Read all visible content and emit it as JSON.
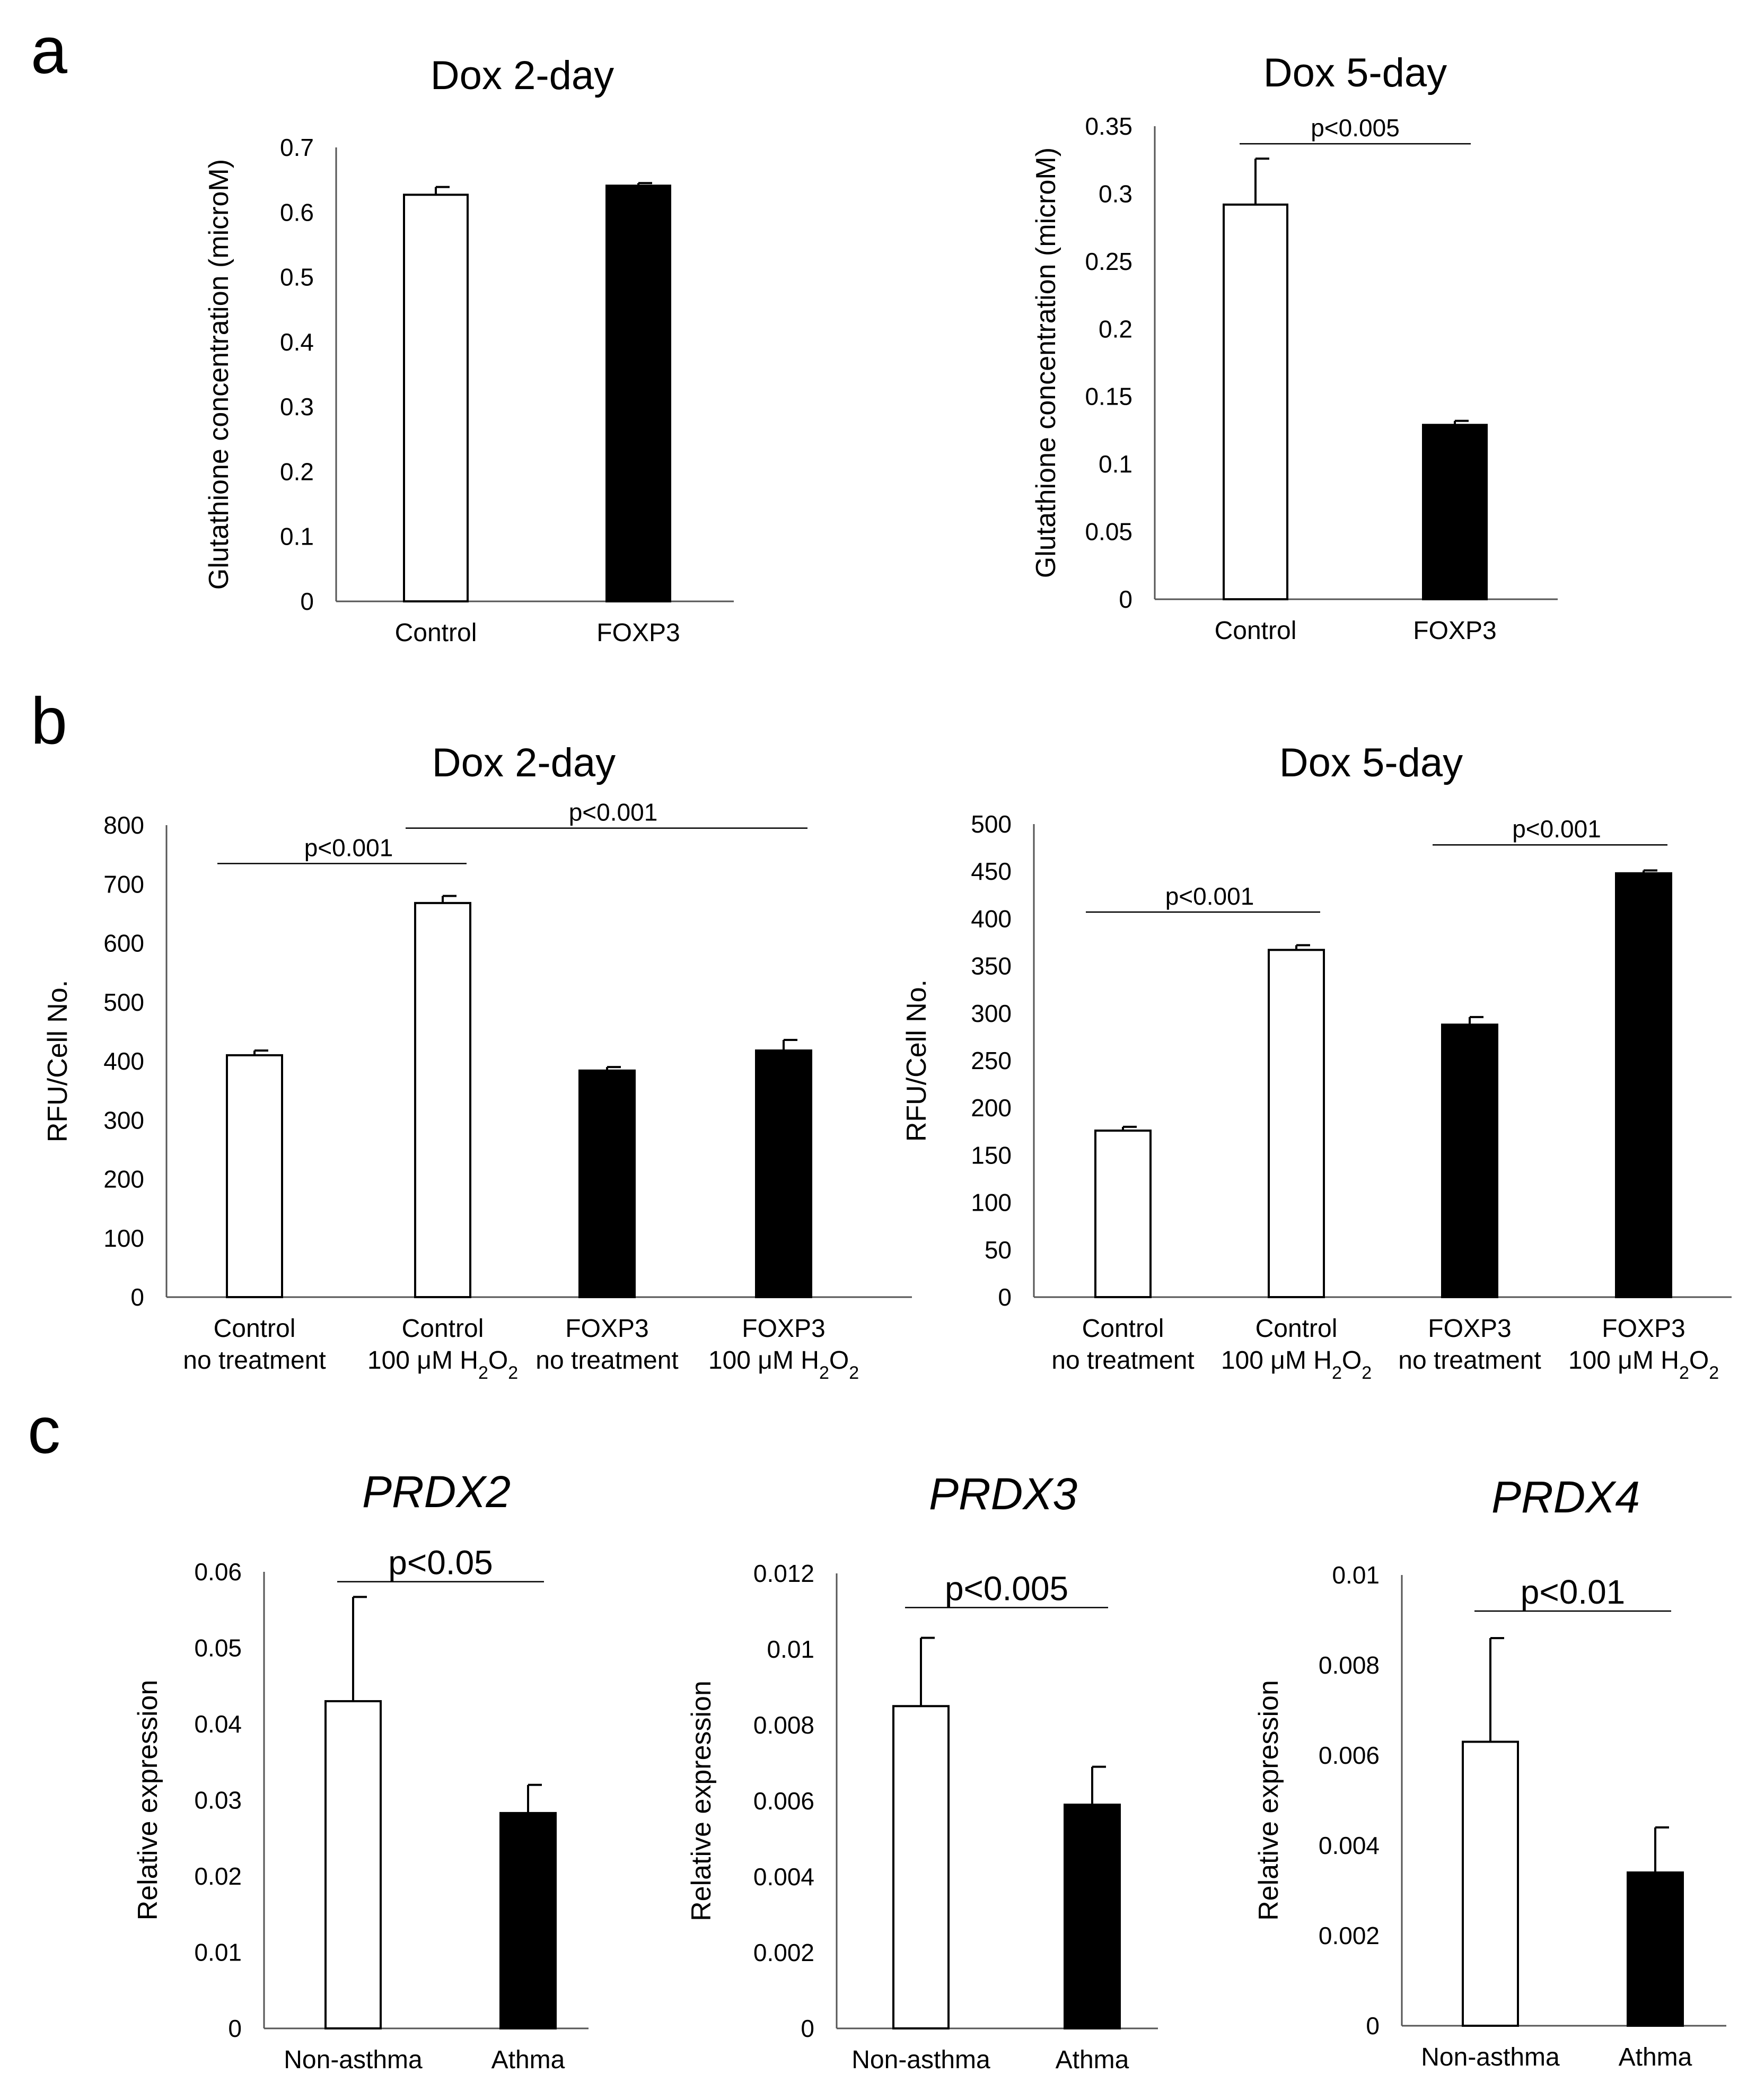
{
  "panels": [
    "a",
    "b",
    "c"
  ],
  "chart_data": [
    {
      "id": "a1",
      "panel": "a",
      "type": "bar",
      "title": "Dox 2-day",
      "italic_title": false,
      "ylabel": "Glutathione concentration (microM)",
      "xlabel": "",
      "ylim": [
        0,
        0.7
      ],
      "yticks": [
        "0",
        "0.1",
        "0.2",
        "0.3",
        "0.4",
        "0.5",
        "0.6",
        "0.7"
      ],
      "categories": [
        [
          "Control"
        ],
        [
          "FOXP3"
        ]
      ],
      "values": [
        0.627,
        0.641
      ],
      "errors": [
        0.012,
        0.004
      ],
      "fills": [
        "#ffffff",
        "#000000"
      ],
      "significance": []
    },
    {
      "id": "a2",
      "panel": "a",
      "type": "bar",
      "title": "Dox 5-day",
      "italic_title": false,
      "ylabel": "Glutathione concentration (microM)",
      "xlabel": "",
      "ylim": [
        0,
        0.35
      ],
      "yticks": [
        "0",
        "0.05",
        "0.1",
        "0.15",
        "0.2",
        "0.25",
        "0.3",
        "0.35"
      ],
      "categories": [
        [
          "Control"
        ],
        [
          "FOXP3"
        ]
      ],
      "values": [
        0.292,
        0.129
      ],
      "errors": [
        0.034,
        0.003
      ],
      "fills": [
        "#ffffff",
        "#000000"
      ],
      "significance": [
        {
          "label": "p<0.005",
          "from": 0,
          "to": 1,
          "y": 0.337
        }
      ]
    },
    {
      "id": "b1",
      "panel": "b",
      "type": "bar",
      "title": "Dox 2-day",
      "italic_title": false,
      "ylabel": "RFU/Cell No.",
      "xlabel": "",
      "ylim": [
        0,
        800
      ],
      "yticks": [
        "0",
        "100",
        "200",
        "300",
        "400",
        "500",
        "600",
        "700",
        "800"
      ],
      "categories": [
        [
          "Control",
          "no treatment"
        ],
        [
          "Control",
          "100 μM H",
          "2",
          "O",
          "2"
        ],
        [
          "FOXP3",
          "no treatment"
        ],
        [
          "FOXP3",
          "100 μM H",
          "2",
          "O",
          "2"
        ]
      ],
      "values": [
        410,
        668,
        384,
        418
      ],
      "errors": [
        8,
        12,
        6,
        18
      ],
      "fills": [
        "#ffffff",
        "#ffffff",
        "#000000",
        "#000000"
      ],
      "significance": [
        {
          "label": "p<0.001",
          "from": 0,
          "to": 1,
          "y": 735
        },
        {
          "label": "p<0.001",
          "from": 1,
          "to": 3,
          "y": 795
        }
      ]
    },
    {
      "id": "b2",
      "panel": "b",
      "type": "bar",
      "title": "Dox 5-day",
      "italic_title": false,
      "ylabel": "RFU/Cell No.",
      "xlabel": "",
      "ylim": [
        0,
        500
      ],
      "yticks": [
        "0",
        "50",
        "100",
        "150",
        "200",
        "250",
        "300",
        "350",
        "400",
        "450",
        "500"
      ],
      "categories": [
        [
          "Control",
          "no treatment"
        ],
        [
          "Control",
          "100 μM H",
          "2",
          "O",
          "2"
        ],
        [
          "FOXP3",
          "no treatment"
        ],
        [
          "FOXP3",
          "100 μM H",
          "2",
          "O",
          "2"
        ]
      ],
      "values": [
        176,
        367,
        288,
        448
      ],
      "errors": [
        4,
        5,
        8,
        3
      ],
      "fills": [
        "#ffffff",
        "#ffffff",
        "#000000",
        "#000000"
      ],
      "significance": [
        {
          "label": "p<0.001",
          "from": 0,
          "to": 1,
          "y": 407
        },
        {
          "label": "p<0.001",
          "from": 2,
          "to": 3,
          "y": 478
        }
      ]
    },
    {
      "id": "c1",
      "panel": "c",
      "type": "bar",
      "title": "PRDX2",
      "italic_title": true,
      "ylabel": "Relative expression",
      "xlabel": "",
      "ylim": [
        0,
        0.06
      ],
      "yticks": [
        "0",
        "0.01",
        "0.02",
        "0.03",
        "0.04",
        "0.05",
        "0.06"
      ],
      "categories": [
        [
          "Non-asthma"
        ],
        [
          "Athma"
        ]
      ],
      "values": [
        0.043,
        0.0283
      ],
      "errors": [
        0.0137,
        0.0037
      ],
      "fills": [
        "#ffffff",
        "#000000"
      ],
      "significance": [
        {
          "label": "p<0.05",
          "from": 0,
          "to": 1,
          "y": 0.0587
        }
      ]
    },
    {
      "id": "c2",
      "panel": "c",
      "type": "bar",
      "title": "PRDX3",
      "italic_title": true,
      "ylabel": "Relative expression",
      "xlabel": "",
      "ylim": [
        0,
        0.012
      ],
      "yticks": [
        "0",
        "0.002",
        "0.004",
        "0.006",
        "0.008",
        "0.01",
        "0.012"
      ],
      "categories": [
        [
          "Non-asthma"
        ],
        [
          "Athma"
        ]
      ],
      "values": [
        0.0085,
        0.0059
      ],
      "errors": [
        0.0018,
        0.001
      ],
      "fills": [
        "#ffffff",
        "#000000"
      ],
      "significance": [
        {
          "label": "p<0.005",
          "from": 0,
          "to": 1,
          "y": 0.0111
        }
      ]
    },
    {
      "id": "c3",
      "panel": "c",
      "type": "bar",
      "title": "PRDX4",
      "italic_title": true,
      "ylabel": "Relative expression",
      "xlabel": "",
      "ylim": [
        0,
        0.01
      ],
      "yticks": [
        "0",
        "0.002",
        "0.004",
        "0.006",
        "0.008",
        "0.01"
      ],
      "categories": [
        [
          "Non-asthma"
        ],
        [
          "Athma"
        ]
      ],
      "values": [
        0.0063,
        0.0034
      ],
      "errors": [
        0.0023,
        0.001
      ],
      "fills": [
        "#ffffff",
        "#000000"
      ],
      "significance": [
        {
          "label": "p<0.01",
          "from": 0,
          "to": 1,
          "y": 0.0092
        }
      ]
    }
  ]
}
